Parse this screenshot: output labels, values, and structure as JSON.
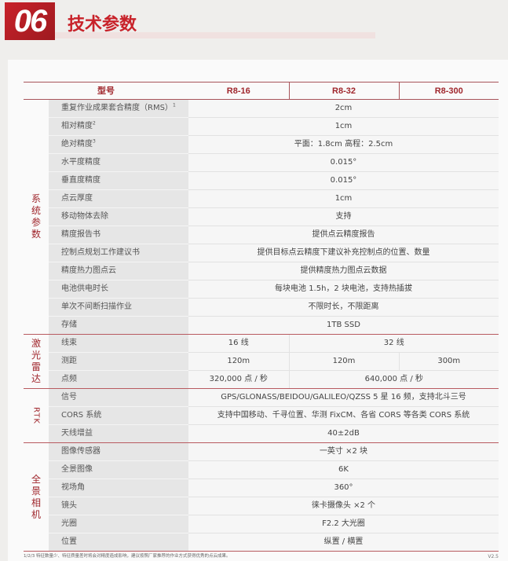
{
  "header": {
    "number": "06",
    "title": "技术参数"
  },
  "table": {
    "columns": [
      "型号",
      "R8-16",
      "R8-32",
      "R8-300"
    ],
    "system": {
      "category": "系统参数",
      "rows": [
        {
          "label": "重复作业成果套合精度（RMS）",
          "sup": "1",
          "value": "2cm"
        },
        {
          "label": "相对精度",
          "sup": "2",
          "value": "1cm"
        },
        {
          "label": "绝对精度",
          "sup": "3",
          "value": "平面：1.8cm  高程：2.5cm"
        },
        {
          "label": "水平度精度",
          "sup": "",
          "value": "0.015°"
        },
        {
          "label": "垂直度精度",
          "sup": "",
          "value": "0.015°"
        },
        {
          "label": "点云厚度",
          "sup": "",
          "value": "1cm"
        },
        {
          "label": "移动物体去除",
          "sup": "",
          "value": "支持"
        },
        {
          "label": "精度报告书",
          "sup": "",
          "value": "提供点云精度报告"
        },
        {
          "label": "控制点规划工作建议书",
          "sup": "",
          "value": "提供目标点云精度下建议补充控制点的位置、数量"
        },
        {
          "label": "精度热力图点云",
          "sup": "",
          "value": "提供精度热力图点云数据"
        },
        {
          "label": "电池供电时长",
          "sup": "",
          "value": "每块电池 1.5h，2 块电池，支持热插拔"
        },
        {
          "label": "单次不间断扫描作业",
          "sup": "",
          "value": "不限时长，不限距离"
        },
        {
          "label": "存储",
          "sup": "",
          "value": "1TB  SSD"
        }
      ]
    },
    "lidar": {
      "category": "激光雷达",
      "rows": [
        {
          "label": "线束",
          "r8_16": "16 线",
          "r8_32_300": "32 线"
        },
        {
          "label": "测距",
          "r8_16": "120m",
          "r8_32": "120m",
          "r8_300": "300m"
        },
        {
          "label": "点频",
          "r8_16": "320,000 点 / 秒",
          "r8_32_300": "640,000 点 / 秒"
        }
      ]
    },
    "rtk": {
      "category": "RTK",
      "rows": [
        {
          "label": "信号",
          "value": "GPS/GLONASS/BEIDOU/GALILEO/QZSS  5 星 16 频，支持北斗三号"
        },
        {
          "label": "CORS 系统",
          "value": "支持中国移动、千寻位置、华测 FixCM、各省 CORS 等各类 CORS 系统"
        },
        {
          "label": "天线增益",
          "value": "40±2dB"
        }
      ]
    },
    "camera": {
      "category": "全景相机",
      "rows": [
        {
          "label": "图像传感器",
          "value": "一英寸 ×2 块"
        },
        {
          "label": "全景图像",
          "value": "6K"
        },
        {
          "label": "视场角",
          "value": "360°"
        },
        {
          "label": "镜头",
          "value": "徕卡摄像头 ×2 个"
        },
        {
          "label": "光圈",
          "value": "F2.2 大光圈"
        },
        {
          "label": "位置",
          "value": "纵置 / 横置"
        }
      ]
    }
  },
  "footnote": "1/2/3 特征数量少、特征质量差时将会对精度造成影响，建议按照厂家推荐的作业方式获得优秀的点云成果。",
  "version": "V2.5",
  "colors": {
    "accent": "#c8222a",
    "rule": "#a8545a"
  }
}
